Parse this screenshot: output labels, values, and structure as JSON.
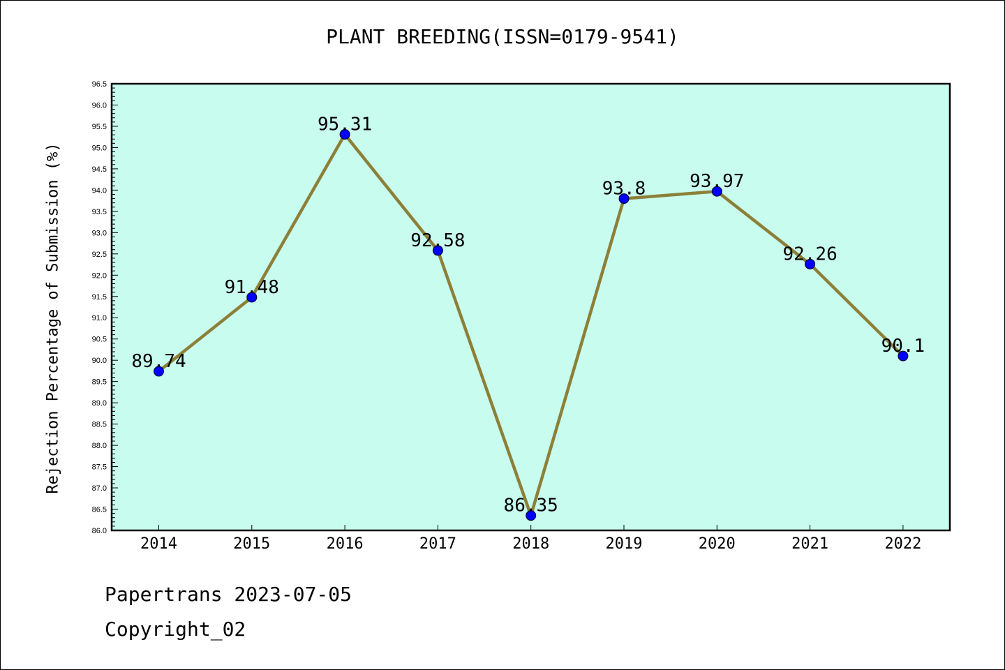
{
  "chart_title": "PLANT BREEDING(ISSN=0179-9541)",
  "footer": {
    "line1": "Papertrans 2023-07-05",
    "line2": "Copyright_02"
  },
  "colors": {
    "plot_background": "#c8fcee",
    "line": "#8c8038",
    "marker": "#0000ff"
  },
  "chart_data": {
    "type": "line",
    "title": "PLANT BREEDING(ISSN=0179-9541)",
    "xlabel": "",
    "ylabel": "Rejection Percentage of Submission (%)",
    "categories": [
      "2014",
      "2015",
      "2016",
      "2017",
      "2018",
      "2019",
      "2020",
      "2021",
      "2022"
    ],
    "values": [
      89.74,
      91.48,
      95.31,
      92.58,
      86.35,
      93.8,
      93.97,
      92.26,
      90.1
    ],
    "data_labels": [
      "89.74",
      "91.48",
      "95.31",
      "92.58",
      "86.35",
      "93.8",
      "93.97",
      "92.26",
      "90.1"
    ],
    "ylim": [
      86.0,
      96.5
    ],
    "yticks": [
      "86.0",
      "86.5",
      "87.0",
      "87.5",
      "88.0",
      "88.5",
      "89.0",
      "89.5",
      "90.0",
      "90.5",
      "91.0",
      "91.5",
      "92.0",
      "92.5",
      "93.0",
      "93.5",
      "94.0",
      "94.5",
      "95.0",
      "95.5",
      "96.0",
      "96.5"
    ],
    "grid": false,
    "legend": "none"
  }
}
